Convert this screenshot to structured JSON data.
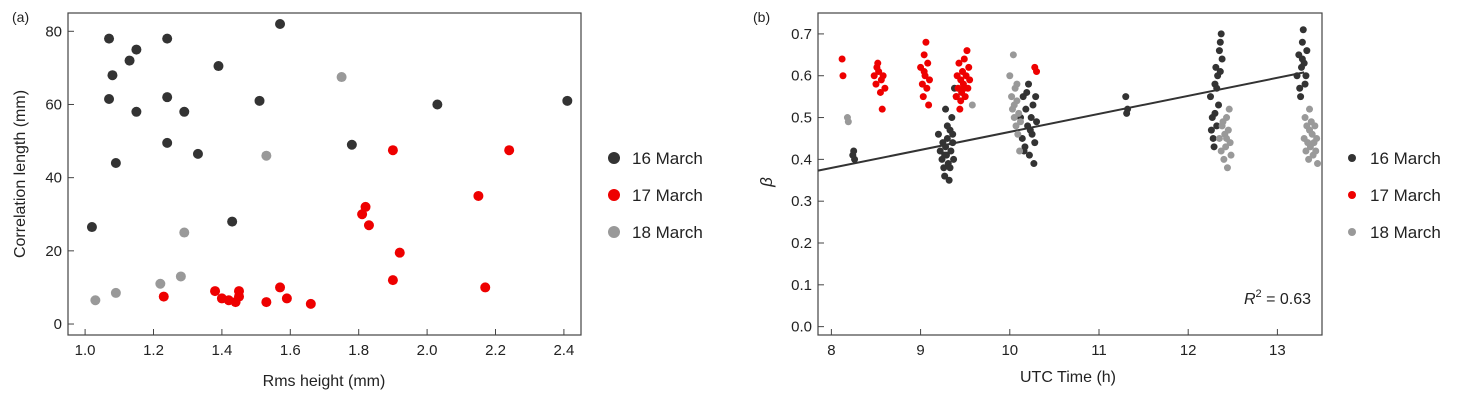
{
  "chart_data": [
    {
      "panel_label": "(a)",
      "type": "scatter",
      "xlabel": "Rms height (mm)",
      "ylabel": "Correlation length (mm)",
      "xlim": [
        0.95,
        2.45
      ],
      "ylim": [
        -3,
        85
      ],
      "xticks": [
        "1.0",
        "1.2",
        "1.4",
        "1.6",
        "1.8",
        "2.0",
        "2.2",
        "2.4"
      ],
      "yticks": [
        "0",
        "20",
        "40",
        "60",
        "80"
      ],
      "legend_position": "right",
      "series": [
        {
          "name": "16 March",
          "color": "#333333",
          "points": [
            [
              1.07,
              78
            ],
            [
              1.24,
              78
            ],
            [
              1.57,
              82
            ],
            [
              1.15,
              75
            ],
            [
              1.13,
              72
            ],
            [
              1.08,
              68
            ],
            [
              1.39,
              70.5
            ],
            [
              1.07,
              61.5
            ],
            [
              1.24,
              62
            ],
            [
              1.51,
              61
            ],
            [
              1.15,
              58
            ],
            [
              1.29,
              58
            ],
            [
              2.03,
              60
            ],
            [
              2.41,
              61
            ],
            [
              1.24,
              49.5
            ],
            [
              1.33,
              46.5
            ],
            [
              1.78,
              49
            ],
            [
              1.09,
              44
            ],
            [
              1.02,
              26.5
            ],
            [
              1.43,
              28
            ]
          ]
        },
        {
          "name": "17 March",
          "color": "#ee0000",
          "points": [
            [
              1.9,
              47.5
            ],
            [
              2.24,
              47.5
            ],
            [
              2.15,
              35
            ],
            [
              1.82,
              32
            ],
            [
              1.81,
              30
            ],
            [
              1.83,
              27
            ],
            [
              1.92,
              19.5
            ],
            [
              1.9,
              12
            ],
            [
              2.17,
              10
            ],
            [
              1.23,
              7.5
            ],
            [
              1.38,
              9
            ],
            [
              1.4,
              7
            ],
            [
              1.42,
              6.5
            ],
            [
              1.44,
              6
            ],
            [
              1.45,
              7.5
            ],
            [
              1.45,
              9
            ],
            [
              1.53,
              6
            ],
            [
              1.57,
              10
            ],
            [
              1.59,
              7
            ],
            [
              1.66,
              5.5
            ]
          ]
        },
        {
          "name": "18 March",
          "color": "#999999",
          "points": [
            [
              1.75,
              67.5
            ],
            [
              1.53,
              46
            ],
            [
              1.29,
              25
            ],
            [
              1.28,
              13
            ],
            [
              1.22,
              11
            ],
            [
              1.09,
              8.5
            ],
            [
              1.03,
              6.5
            ]
          ]
        }
      ]
    },
    {
      "panel_label": "(b)",
      "type": "scatter",
      "xlabel": "UTC Time (h)",
      "ylabel": "β",
      "xlim": [
        7.85,
        13.5
      ],
      "ylim": [
        -0.02,
        0.75
      ],
      "xticks": [
        "8",
        "9",
        "10",
        "11",
        "12",
        "13"
      ],
      "yticks": [
        "0.0",
        "0.1",
        "0.2",
        "0.3",
        "0.4",
        "0.5",
        "0.6",
        "0.7"
      ],
      "annotation": "R² = 0.63",
      "annotation_parts": {
        "base": "R",
        "sup": "2",
        "rest": " = 0.63"
      },
      "trendline": {
        "x": [
          7.85,
          13.3
        ],
        "y": [
          0.373,
          0.608
        ]
      },
      "legend_position": "right",
      "series": [
        {
          "name": "16 March",
          "color": "#333333",
          "points": [
            [
              8.25,
              0.42
            ],
            [
              8.26,
              0.4
            ],
            [
              8.24,
              0.41
            ],
            [
              9.2,
              0.46
            ],
            [
              9.22,
              0.42
            ],
            [
              9.24,
              0.4
            ],
            [
              9.25,
              0.44
            ],
            [
              9.26,
              0.38
            ],
            [
              9.27,
              0.36
            ],
            [
              9.28,
              0.43
            ],
            [
              9.29,
              0.41
            ],
            [
              9.3,
              0.45
            ],
            [
              9.31,
              0.39
            ],
            [
              9.32,
              0.35
            ],
            [
              9.33,
              0.47
            ],
            [
              9.34,
              0.42
            ],
            [
              9.35,
              0.5
            ],
            [
              9.36,
              0.44
            ],
            [
              9.37,
              0.4
            ],
            [
              9.3,
              0.48
            ],
            [
              9.28,
              0.52
            ],
            [
              9.38,
              0.57
            ],
            [
              9.4,
              0.55
            ],
            [
              9.33,
              0.38
            ],
            [
              9.27,
              0.41
            ],
            [
              9.36,
              0.46
            ],
            [
              10.12,
              0.5
            ],
            [
              10.14,
              0.45
            ],
            [
              10.15,
              0.55
            ],
            [
              10.17,
              0.43
            ],
            [
              10.18,
              0.52
            ],
            [
              10.2,
              0.48
            ],
            [
              10.21,
              0.58
            ],
            [
              10.22,
              0.41
            ],
            [
              10.24,
              0.5
            ],
            [
              10.25,
              0.46
            ],
            [
              10.26,
              0.53
            ],
            [
              10.27,
              0.39
            ],
            [
              10.28,
              0.44
            ],
            [
              10.29,
              0.55
            ],
            [
              10.3,
              0.49
            ],
            [
              10.23,
              0.47
            ],
            [
              10.19,
              0.56
            ],
            [
              10.16,
              0.42
            ],
            [
              11.3,
              0.55
            ],
            [
              11.32,
              0.52
            ],
            [
              11.31,
              0.51
            ],
            [
              12.25,
              0.55
            ],
            [
              12.27,
              0.5
            ],
            [
              12.28,
              0.45
            ],
            [
              12.3,
              0.58
            ],
            [
              12.31,
              0.62
            ],
            [
              12.32,
              0.48
            ],
            [
              12.33,
              0.6
            ],
            [
              12.35,
              0.66
            ],
            [
              12.36,
              0.68
            ],
            [
              12.37,
              0.7
            ],
            [
              12.38,
              0.64
            ],
            [
              12.34,
              0.53
            ],
            [
              12.29,
              0.43
            ],
            [
              12.26,
              0.47
            ],
            [
              12.32,
              0.57
            ],
            [
              12.36,
              0.61
            ],
            [
              12.3,
              0.51
            ],
            [
              13.22,
              0.6
            ],
            [
              13.24,
              0.65
            ],
            [
              13.25,
              0.57
            ],
            [
              13.27,
              0.62
            ],
            [
              13.28,
              0.68
            ],
            [
              13.29,
              0.71
            ],
            [
              13.3,
              0.63
            ],
            [
              13.31,
              0.58
            ],
            [
              13.33,
              0.66
            ],
            [
              13.26,
              0.55
            ],
            [
              13.32,
              0.6
            ],
            [
              13.28,
              0.64
            ]
          ]
        },
        {
          "name": "17 March",
          "color": "#ee0000",
          "points": [
            [
              8.12,
              0.64
            ],
            [
              8.13,
              0.6
            ],
            [
              8.48,
              0.6
            ],
            [
              8.5,
              0.58
            ],
            [
              8.52,
              0.63
            ],
            [
              8.53,
              0.61
            ],
            [
              8.55,
              0.56
            ],
            [
              8.56,
              0.59
            ],
            [
              8.57,
              0.52
            ],
            [
              8.58,
              0.6
            ],
            [
              8.6,
              0.57
            ],
            [
              8.51,
              0.62
            ],
            [
              9.0,
              0.62
            ],
            [
              9.02,
              0.58
            ],
            [
              9.03,
              0.55
            ],
            [
              9.04,
              0.65
            ],
            [
              9.05,
              0.6
            ],
            [
              9.06,
              0.68
            ],
            [
              9.07,
              0.57
            ],
            [
              9.08,
              0.63
            ],
            [
              9.09,
              0.53
            ],
            [
              9.1,
              0.59
            ],
            [
              9.04,
              0.61
            ],
            [
              9.4,
              0.55
            ],
            [
              9.41,
              0.6
            ],
            [
              9.42,
              0.57
            ],
            [
              9.43,
              0.63
            ],
            [
              9.44,
              0.52
            ],
            [
              9.45,
              0.59
            ],
            [
              9.46,
              0.56
            ],
            [
              9.47,
              0.61
            ],
            [
              9.48,
              0.58
            ],
            [
              9.49,
              0.64
            ],
            [
              9.5,
              0.55
            ],
            [
              9.51,
              0.6
            ],
            [
              9.52,
              0.66
            ],
            [
              9.53,
              0.57
            ],
            [
              9.54,
              0.62
            ],
            [
              9.55,
              0.59
            ],
            [
              9.45,
              0.54
            ],
            [
              9.49,
              0.57
            ],
            [
              10.28,
              0.62
            ],
            [
              10.3,
              0.61
            ]
          ]
        },
        {
          "name": "18 March",
          "color": "#999999",
          "points": [
            [
              8.18,
              0.5
            ],
            [
              8.19,
              0.49
            ],
            [
              9.58,
              0.53
            ],
            [
              10.0,
              0.6
            ],
            [
              10.02,
              0.55
            ],
            [
              10.03,
              0.52
            ],
            [
              10.04,
              0.65
            ],
            [
              10.05,
              0.5
            ],
            [
              10.06,
              0.57
            ],
            [
              10.07,
              0.48
            ],
            [
              10.08,
              0.54
            ],
            [
              10.09,
              0.46
            ],
            [
              10.1,
              0.51
            ],
            [
              10.11,
              0.42
            ],
            [
              10.12,
              0.49
            ],
            [
              10.05,
              0.53
            ],
            [
              10.08,
              0.58
            ],
            [
              12.35,
              0.45
            ],
            [
              12.37,
              0.42
            ],
            [
              12.38,
              0.48
            ],
            [
              12.4,
              0.4
            ],
            [
              12.41,
              0.46
            ],
            [
              12.42,
              0.43
            ],
            [
              12.43,
              0.5
            ],
            [
              12.44,
              0.38
            ],
            [
              12.45,
              0.47
            ],
            [
              12.46,
              0.52
            ],
            [
              12.47,
              0.44
            ],
            [
              12.48,
              0.41
            ],
            [
              12.39,
              0.49
            ],
            [
              12.43,
              0.45
            ],
            [
              13.3,
              0.45
            ],
            [
              13.31,
              0.5
            ],
            [
              13.32,
              0.42
            ],
            [
              13.33,
              0.48
            ],
            [
              13.34,
              0.44
            ],
            [
              13.35,
              0.4
            ],
            [
              13.36,
              0.47
            ],
            [
              13.37,
              0.43
            ],
            [
              13.38,
              0.49
            ],
            [
              13.39,
              0.46
            ],
            [
              13.4,
              0.41
            ],
            [
              13.41,
              0.44
            ],
            [
              13.42,
              0.48
            ],
            [
              13.43,
              0.42
            ],
            [
              13.44,
              0.45
            ],
            [
              13.45,
              0.39
            ],
            [
              13.36,
              0.52
            ]
          ]
        }
      ]
    }
  ]
}
